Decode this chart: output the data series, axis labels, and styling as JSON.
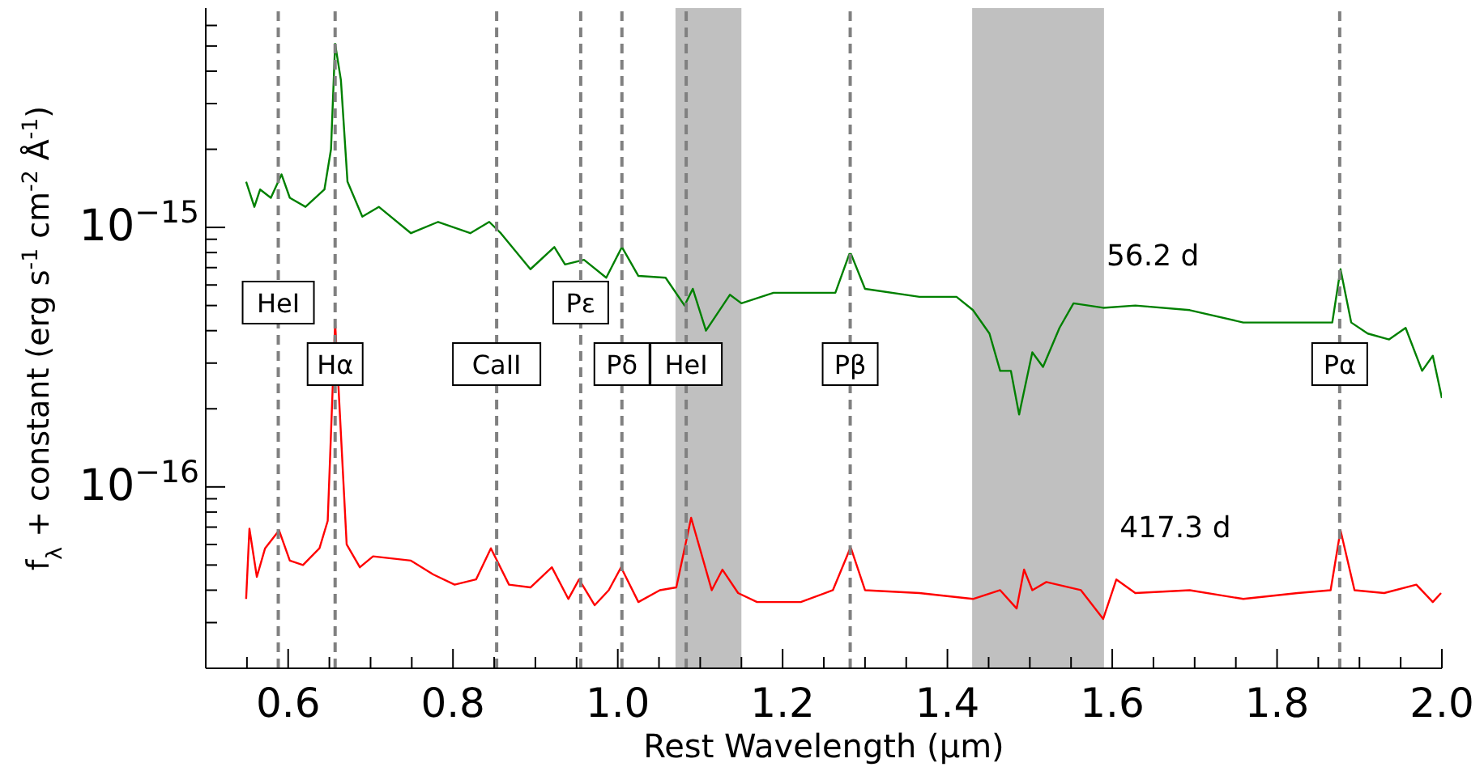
{
  "chart_data": {
    "type": "line",
    "xlabel": "Rest Wavelength (μm)",
    "ylabel": "f$_{λ}$ + constant (erg s$^{-1}$ cm$^{-2}$ Å$^{-1}$)",
    "log": true,
    "xlim": [
      0.5,
      2.0
    ],
    "xticks": [
      {
        "value": 0.55,
        "label": null
      },
      0.6,
      {
        "value": 0.65,
        "label": null
      },
      {
        "value": 0.7,
        "label": null
      },
      {
        "value": 0.75,
        "label": null
      },
      0.8,
      {
        "value": 0.85,
        "label": null
      },
      {
        "value": 0.9,
        "label": null
      },
      {
        "value": 0.95,
        "label": null
      },
      {
        "value": 1.0,
        "label": "1.0"
      },
      {
        "value": 1.05,
        "label": null
      },
      {
        "value": 1.1,
        "label": null
      },
      {
        "value": 1.15,
        "label": null
      },
      1.2,
      {
        "value": 1.25,
        "label": null
      },
      {
        "value": 1.3,
        "label": null
      },
      {
        "value": 1.35,
        "label": null
      },
      1.4,
      {
        "value": 1.45,
        "label": null
      },
      {
        "value": 1.5,
        "label": null
      },
      {
        "value": 1.55,
        "label": null
      },
      1.6,
      {
        "value": 1.65,
        "label": null
      },
      {
        "value": 1.7,
        "label": null
      },
      {
        "value": 1.75,
        "label": null
      },
      1.8,
      {
        "value": 1.85,
        "label": null
      },
      {
        "value": 1.9,
        "label": null
      },
      {
        "value": 1.95,
        "label": null
      },
      {
        "value": 2.0,
        "label": "2.0"
      }
    ],
    "ylim": [
      2e-17,
      7e-15
    ],
    "yticks": [
      {
        "value": 3e-17,
        "label": null
      },
      {
        "value": 4e-17,
        "label": null
      },
      {
        "value": 5e-17,
        "label": null
      },
      {
        "value": 6e-17,
        "label": null
      },
      {
        "value": 7e-17,
        "label": null
      },
      {
        "value": 8e-17,
        "label": null
      },
      {
        "value": 9e-17,
        "label": null
      },
      {
        "value": 1e-16,
        "label": "10$^{−16}$"
      },
      {
        "value": 2e-16,
        "label": null
      },
      {
        "value": 3e-16,
        "label": null
      },
      {
        "value": 4e-16,
        "label": null
      },
      {
        "value": 5e-16,
        "label": null
      },
      {
        "value": 6e-16,
        "label": null
      },
      {
        "value": 7e-16,
        "label": null
      },
      {
        "value": 8e-16,
        "label": null
      },
      {
        "value": 9e-16,
        "label": null
      },
      {
        "value": 1e-15,
        "label": "10$^{−15}$"
      },
      {
        "value": 2e-15,
        "label": null
      },
      {
        "value": 3e-15,
        "label": null
      },
      {
        "value": 4e-15,
        "label": null
      },
      {
        "value": 5e-15,
        "label": null
      },
      {
        "value": 6e-15,
        "label": null
      }
    ],
    "bands": [
      {
        "axis": "x",
        "from": 1.07,
        "to": 1.15,
        "color": "#c0c0c0"
      },
      {
        "axis": "x",
        "from": 1.43,
        "to": 1.59,
        "color": "#c0c0c0"
      }
    ],
    "ref_lines": [
      {
        "axis": "x",
        "value": 0.588,
        "label": "HeI",
        "color": "#808080",
        "line_style": "dashed"
      },
      {
        "axis": "x",
        "value": 0.657,
        "label": "Hα",
        "color": "#808080",
        "line_style": "dashed"
      },
      {
        "axis": "x",
        "value": 0.853,
        "label": "CaII",
        "color": "#808080",
        "line_style": "dashed"
      },
      {
        "axis": "x",
        "value": 0.955,
        "label": "Pε",
        "color": "#808080",
        "line_style": "dashed"
      },
      {
        "axis": "x",
        "value": 1.005,
        "label": "Pδ",
        "color": "#808080",
        "line_style": "dashed"
      },
      {
        "axis": "x",
        "value": 1.083,
        "label": "HeI",
        "color": "#808080",
        "line_style": "dashed"
      },
      {
        "axis": "x",
        "value": 1.282,
        "label": "Pβ",
        "color": "#808080",
        "line_style": "dashed"
      },
      {
        "axis": "x",
        "value": 1.876,
        "label": "Pα",
        "color": "#808080",
        "line_style": "dashed"
      }
    ],
    "series": [
      {
        "name": "56.2 d",
        "color": "#008000",
        "x": [
          0.549,
          0.559,
          0.566,
          0.579,
          0.592,
          0.602,
          0.621,
          0.644,
          0.652,
          0.657,
          0.664,
          0.672,
          0.69,
          0.71,
          0.749,
          0.782,
          0.821,
          0.844,
          0.858,
          0.894,
          0.923,
          0.936,
          0.959,
          0.986,
          1.005,
          1.025,
          1.058,
          1.081,
          1.091,
          1.107,
          1.136,
          1.15,
          1.189,
          1.264,
          1.281,
          1.283,
          1.3,
          1.366,
          1.411,
          1.431,
          1.451,
          1.464,
          1.477,
          1.487,
          1.503,
          1.516,
          1.536,
          1.553,
          1.589,
          1.628,
          1.694,
          1.759,
          1.825,
          1.867,
          1.877,
          1.89,
          1.91,
          1.936,
          1.956,
          1.976,
          1.989,
          2.0
        ],
        "values": [
          1.5e-15,
          1.2e-15,
          1.4e-15,
          1.3e-15,
          1.6e-15,
          1.3e-15,
          1.2e-15,
          1.4e-15,
          2e-15,
          5.1e-15,
          3.7e-15,
          1.5e-15,
          1.1e-15,
          1.2e-15,
          9.5e-16,
          1.05e-15,
          9.5e-16,
          1.05e-15,
          9.5e-16,
          6.9e-16,
          8.4e-16,
          7.2e-16,
          7.5e-16,
          6.4e-16,
          8.4e-16,
          6.5e-16,
          6.4e-16,
          5e-16,
          5.8e-16,
          4e-16,
          5.5e-16,
          5.1e-16,
          5.6e-16,
          5.6e-16,
          7.9e-16,
          7.9e-16,
          5.8e-16,
          5.4e-16,
          5.4e-16,
          4.8e-16,
          3.9e-16,
          2.8e-16,
          2.8e-16,
          1.9e-16,
          3.3e-16,
          2.9e-16,
          4.1e-16,
          5.1e-16,
          4.9e-16,
          5e-16,
          4.8e-16,
          4.3e-16,
          4.3e-16,
          4.3e-16,
          6.9e-16,
          4.3e-16,
          3.9e-16,
          3.7e-16,
          4.1e-16,
          2.8e-16,
          3.2e-16,
          2.2e-16
        ]
      },
      {
        "name": "417.3 d",
        "color": "#ff0000",
        "x": [
          0.549,
          0.553,
          0.562,
          0.572,
          0.589,
          0.602,
          0.618,
          0.638,
          0.648,
          0.657,
          0.671,
          0.687,
          0.703,
          0.749,
          0.776,
          0.802,
          0.828,
          0.846,
          0.868,
          0.894,
          0.92,
          0.94,
          0.953,
          0.972,
          0.989,
          1.004,
          1.025,
          1.051,
          1.071,
          1.089,
          1.114,
          1.127,
          1.146,
          1.169,
          1.222,
          1.261,
          1.282,
          1.283,
          1.3,
          1.366,
          1.431,
          1.464,
          1.484,
          1.493,
          1.503,
          1.52,
          1.562,
          1.589,
          1.605,
          1.628,
          1.694,
          1.759,
          1.825,
          1.865,
          1.877,
          1.894,
          1.93,
          1.969,
          1.989,
          1.999
        ],
        "values": [
          3.7e-17,
          6.9e-17,
          4.5e-17,
          5.8e-17,
          6.8e-17,
          5.2e-17,
          5e-17,
          5.8e-17,
          7.4e-17,
          4.3e-16,
          6e-17,
          4.9e-17,
          5.4e-17,
          5.2e-17,
          4.6e-17,
          4.2e-17,
          4.4e-17,
          5.8e-17,
          4.2e-17,
          4.1e-17,
          4.9e-17,
          3.7e-17,
          4.4e-17,
          3.5e-17,
          4e-17,
          4.9e-17,
          3.6e-17,
          4e-17,
          4.1e-17,
          7.6e-17,
          4e-17,
          4.8e-17,
          3.9e-17,
          3.6e-17,
          3.6e-17,
          4e-17,
          5.8e-17,
          5.8e-17,
          4e-17,
          3.9e-17,
          3.7e-17,
          4e-17,
          3.4e-17,
          4.8e-17,
          4e-17,
          4.3e-17,
          4e-17,
          3.1e-17,
          4.4e-17,
          3.9e-17,
          4e-17,
          3.7e-17,
          3.9e-17,
          4e-17,
          6.8e-17,
          4e-17,
          3.9e-17,
          4.2e-17,
          3.6e-17,
          3.9e-17
        ]
      }
    ]
  }
}
